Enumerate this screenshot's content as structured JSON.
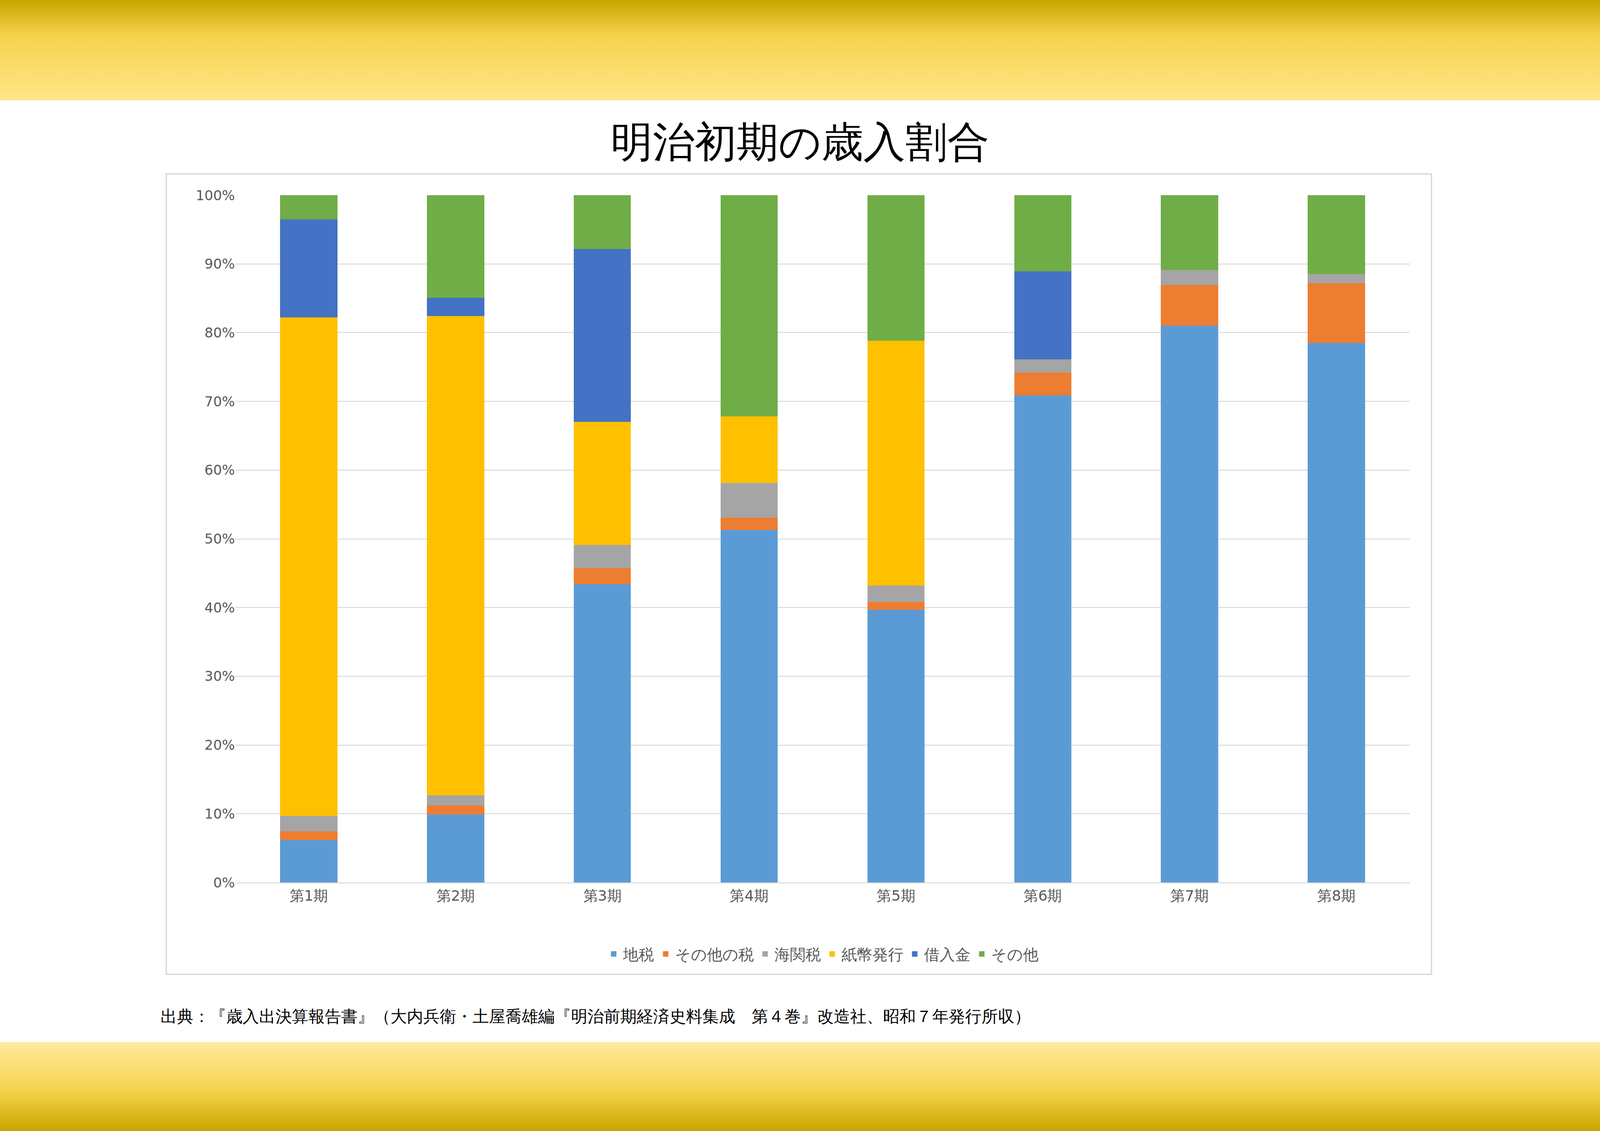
{
  "chart_data": {
    "type": "bar",
    "title": "明治初期の歳入割合",
    "source": "出典：『歳入出決算報告書』（大内兵衛・土屋喬雄編『明治前期経済史料集成　第４巻』改造社、昭和７年発行所収）",
    "categories": [
      "第1期",
      "第2期",
      "第3期",
      "第4期",
      "第5期",
      "第6期",
      "第7期",
      "第8期"
    ],
    "stacked": true,
    "grid": true,
    "legend": "bottom",
    "ylim": [
      0,
      100
    ],
    "yticks": [
      {
        "value": 0,
        "label": "0%"
      },
      {
        "value": 10,
        "label": "10%"
      },
      {
        "value": 20,
        "label": "20%"
      },
      {
        "value": 30,
        "label": "30%"
      },
      {
        "value": 40,
        "label": "40%"
      },
      {
        "value": 50,
        "label": "50%"
      },
      {
        "value": 60,
        "label": "60%"
      },
      {
        "value": 70,
        "label": "70%"
      },
      {
        "value": 80,
        "label": "80%"
      },
      {
        "value": 90,
        "label": "90%"
      },
      {
        "value": 100,
        "label": "100%"
      }
    ],
    "series": [
      {
        "name": "地税",
        "color": "#5b9bd5",
        "values": [
          6.2,
          9.9,
          43.4,
          51.3,
          39.7,
          70.9,
          81.0,
          78.5
        ]
      },
      {
        "name": "その他の税",
        "color": "#ed7d31",
        "values": [
          1.2,
          1.3,
          2.3,
          1.8,
          1.1,
          3.3,
          5.9,
          8.7
        ]
      },
      {
        "name": "海関税",
        "color": "#a5a5a5",
        "values": [
          2.3,
          1.5,
          3.4,
          5.0,
          2.4,
          1.9,
          2.2,
          1.3
        ]
      },
      {
        "name": "紙幣発行",
        "color": "#ffc000",
        "values": [
          72.5,
          69.7,
          17.9,
          9.7,
          35.6,
          0,
          0,
          0
        ]
      },
      {
        "name": "借入金",
        "color": "#4472c4",
        "values": [
          14.3,
          2.7,
          25.2,
          0,
          0,
          12.8,
          0,
          0
        ]
      },
      {
        "name": "その他",
        "color": "#70ad47",
        "values": [
          3.5,
          14.9,
          7.8,
          32.2,
          21.2,
          11.1,
          10.9,
          11.5
        ]
      }
    ]
  }
}
